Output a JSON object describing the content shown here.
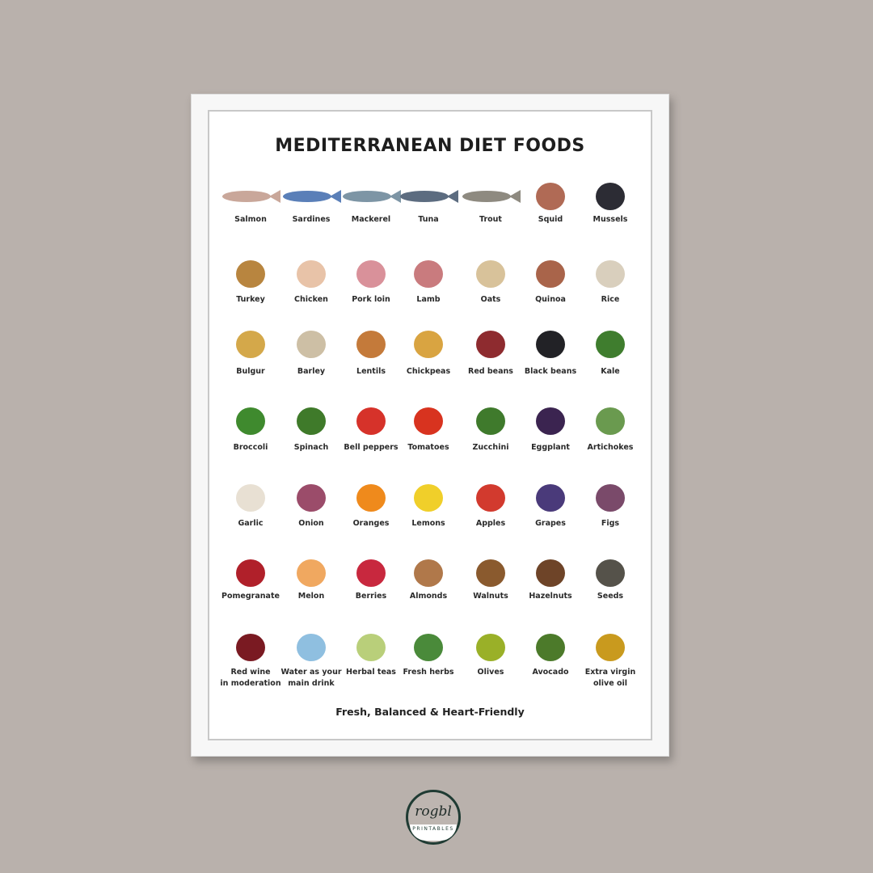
{
  "poster": {
    "title": "MEDITERRANEAN DIET FOODS",
    "tagline": "Fresh, Balanced & Heart-Friendly",
    "rows": [
      [
        {
          "label": "Salmon",
          "icon": "fish-icon",
          "color": "#c9a79a"
        },
        {
          "label": "Sardines",
          "icon": "fish-icon",
          "color": "#5a7fb8"
        },
        {
          "label": "Mackerel",
          "icon": "fish-icon",
          "color": "#7d95a5"
        },
        {
          "label": "Tuna",
          "icon": "fish-icon",
          "color": "#5c6c80"
        },
        {
          "label": "Trout",
          "icon": "fish-icon",
          "color": "#8e8a80"
        },
        {
          "label": "Squid",
          "icon": "squid-icon",
          "color": "#b06a55"
        },
        {
          "label": "Mussels",
          "icon": "mussels-icon",
          "color": "#2c2c34"
        }
      ],
      [
        {
          "label": "Turkey",
          "icon": "turkey-icon",
          "color": "#b8853f"
        },
        {
          "label": "Chicken",
          "icon": "chicken-icon",
          "color": "#e8c3a8"
        },
        {
          "label": "Pork loin",
          "icon": "pork-icon",
          "color": "#d9919a"
        },
        {
          "label": "Lamb",
          "icon": "lamb-icon",
          "color": "#c97b7e"
        },
        {
          "label": "Oats",
          "icon": "oats-icon",
          "color": "#d8c29a"
        },
        {
          "label": "Quinoa",
          "icon": "quinoa-icon",
          "color": "#a9644a"
        },
        {
          "label": "Rice",
          "icon": "rice-bowl-icon",
          "color": "#d9cfbd"
        }
      ],
      [
        {
          "label": "Bulgur",
          "icon": "bulgur-bowl-icon",
          "color": "#d4a84a"
        },
        {
          "label": "Barley",
          "icon": "barley-bowl-icon",
          "color": "#cdbfa5"
        },
        {
          "label": "Lentils",
          "icon": "lentils-icon",
          "color": "#c47a3a"
        },
        {
          "label": "Chickpeas",
          "icon": "chickpeas-icon",
          "color": "#d9a441"
        },
        {
          "label": "Red beans",
          "icon": "red-beans-icon",
          "color": "#8e2b2f"
        },
        {
          "label": "Black beans",
          "icon": "black-beans-icon",
          "color": "#222226"
        },
        {
          "label": "Kale",
          "icon": "kale-icon",
          "color": "#3f7d2e"
        }
      ],
      [
        {
          "label": "Broccoli",
          "icon": "broccoli-icon",
          "color": "#3f8a2e"
        },
        {
          "label": "Spinach",
          "icon": "spinach-icon",
          "color": "#3f7a2a"
        },
        {
          "label": "Bell peppers",
          "icon": "bell-peppers-icon",
          "color": "#d6322a"
        },
        {
          "label": "Tomatoes",
          "icon": "tomatoes-icon",
          "color": "#d8331f"
        },
        {
          "label": "Zucchini",
          "icon": "zucchini-icon",
          "color": "#3f7a2c"
        },
        {
          "label": "Eggplant",
          "icon": "eggplant-icon",
          "color": "#3b2450"
        },
        {
          "label": "Artichokes",
          "icon": "artichoke-icon",
          "color": "#6a9a4f"
        }
      ],
      [
        {
          "label": "Garlic",
          "icon": "garlic-icon",
          "color": "#e8e0d3"
        },
        {
          "label": "Onion",
          "icon": "onion-icon",
          "color": "#9b4c6a"
        },
        {
          "label": "Oranges",
          "icon": "orange-icon",
          "color": "#ef8a1c"
        },
        {
          "label": "Lemons",
          "icon": "lemon-icon",
          "color": "#f0cf2a"
        },
        {
          "label": "Apples",
          "icon": "apple-icon",
          "color": "#d23a2e"
        },
        {
          "label": "Grapes",
          "icon": "grapes-icon",
          "color": "#4a3a7a"
        },
        {
          "label": "Figs",
          "icon": "fig-icon",
          "color": "#7a4a6a"
        }
      ],
      [
        {
          "label": "Pomegranate",
          "icon": "pomegranate-icon",
          "color": "#b0202a"
        },
        {
          "label": "Melon",
          "icon": "melon-icon",
          "color": "#f0a860"
        },
        {
          "label": "Berries",
          "icon": "berries-icon",
          "color": "#c8283e"
        },
        {
          "label": "Almonds",
          "icon": "almonds-icon",
          "color": "#b0784a"
        },
        {
          "label": "Walnuts",
          "icon": "walnuts-icon",
          "color": "#8a5a2e"
        },
        {
          "label": "Hazelnuts",
          "icon": "hazelnuts-icon",
          "color": "#6e4428"
        },
        {
          "label": "Seeds",
          "icon": "seeds-icon",
          "color": "#55524a"
        }
      ],
      [
        {
          "label": "Red wine\nin moderation",
          "icon": "wine-glass-icon",
          "color": "#7a1a22"
        },
        {
          "label": "Water as your\nmain drink",
          "icon": "water-bottles-icon",
          "color": "#8fbfe0"
        },
        {
          "label": "Herbal teas",
          "icon": "tea-cup-icon",
          "color": "#b9cf7a"
        },
        {
          "label": "Fresh herbs",
          "icon": "herbs-icon",
          "color": "#4a8a3a"
        },
        {
          "label": "Olives",
          "icon": "olives-icon",
          "color": "#9ab028"
        },
        {
          "label": "Avocado",
          "icon": "avocado-icon",
          "color": "#4c7a2a"
        },
        {
          "label": "Extra virgin\nolive oil",
          "icon": "olive-oil-bottle-icon",
          "color": "#c99a1e"
        }
      ]
    ]
  },
  "logo": {
    "word": "rogbl",
    "subtitle": "PRINTABLES"
  }
}
